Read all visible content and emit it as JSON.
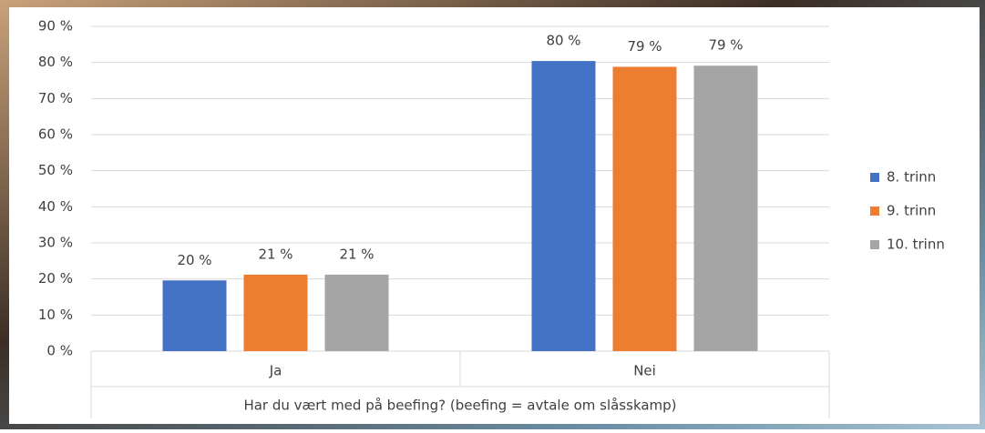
{
  "chart_data": {
    "type": "bar",
    "x_label": "Har du vært med på beefing? (beefing = avtale om slåsskamp)",
    "categories": [
      "Ja",
      "Nei"
    ],
    "series": [
      {
        "name": "8. trinn",
        "color": "#4472c4",
        "values": [
          19.6,
          80.4
        ],
        "value_labels": [
          "20 %",
          "80 %"
        ]
      },
      {
        "name": "9. trinn",
        "color": "#ed7d31",
        "values": [
          21.2,
          78.8
        ],
        "value_labels": [
          "21 %",
          "79 %"
        ]
      },
      {
        "name": "10. trinn",
        "color": "#a5a5a5",
        "values": [
          21.2,
          79.1
        ],
        "value_labels": [
          "21 %",
          "79 %"
        ]
      }
    ],
    "ylim": [
      0,
      90
    ],
    "yticks": [
      {
        "value": 0,
        "label": "0 %"
      },
      {
        "value": 10,
        "label": "10 %"
      },
      {
        "value": 20,
        "label": "20 %"
      },
      {
        "value": 30,
        "label": "30 %"
      },
      {
        "value": 40,
        "label": "40 %"
      },
      {
        "value": 50,
        "label": "50 %"
      },
      {
        "value": 60,
        "label": "60 %"
      },
      {
        "value": 70,
        "label": "70 %"
      },
      {
        "value": 80,
        "label": "80 %"
      },
      {
        "value": 90,
        "label": "90 %"
      }
    ],
    "grid": true,
    "legend": "right"
  }
}
